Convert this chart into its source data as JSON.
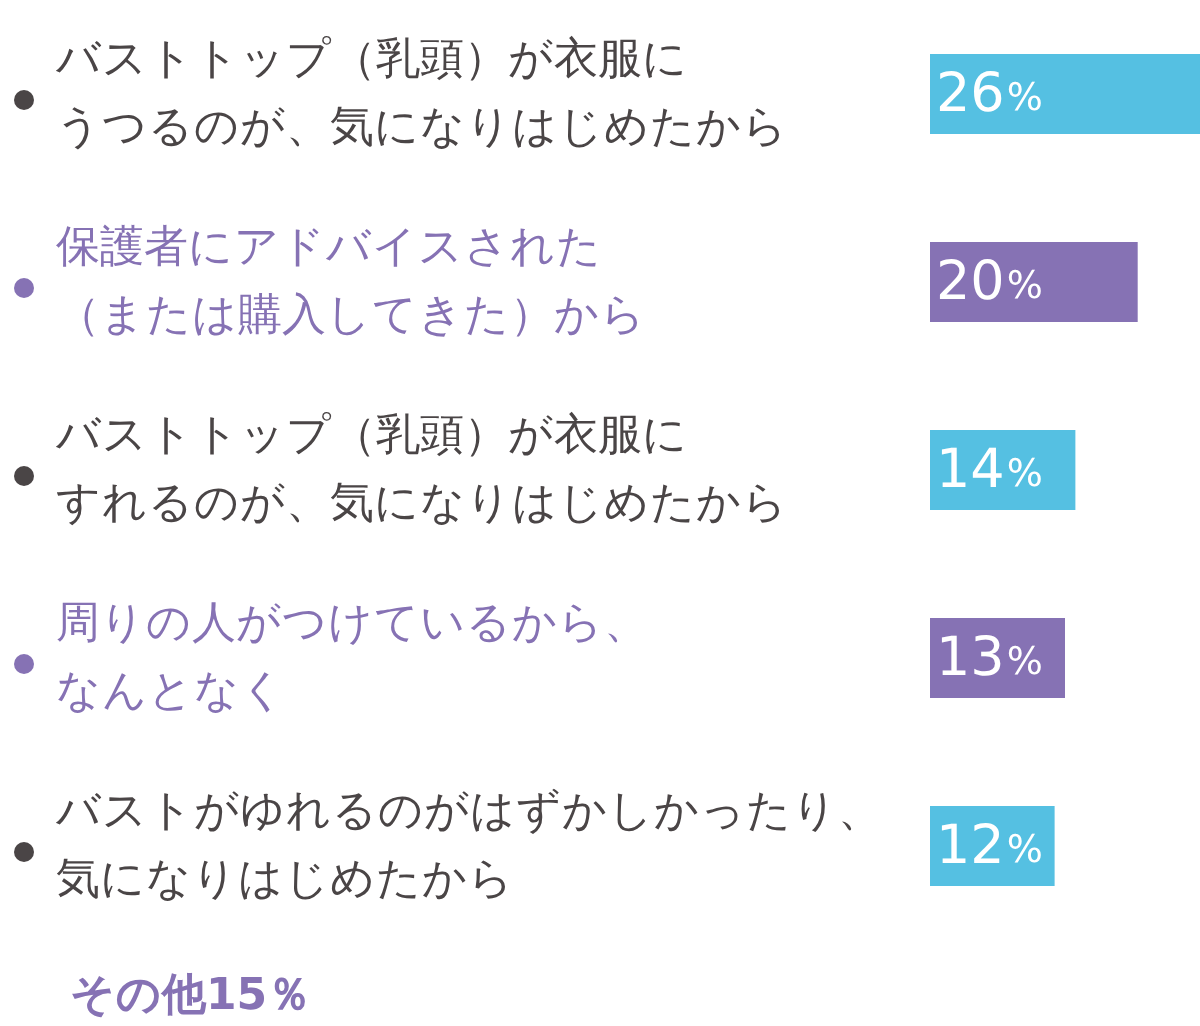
{
  "chart_data": {
    "type": "bar",
    "orientation": "horizontal",
    "categories": [
      "バストトップ（乳頭）が衣服にうつるのが、気になりはじめたから",
      "保護者にアドバイスされた（または購入してきた）から",
      "バストトップ（乳頭）が衣服にすれるのが、気になりはじめたから",
      "周りの人がつけているから、なんとなく",
      "バストがゆれるのがはずかしかったり、気になりはじめたから"
    ],
    "values": [
      26,
      20,
      14,
      13,
      12
    ],
    "colors": [
      "#55c0e2",
      "#8672b4",
      "#55c0e2",
      "#8672b4",
      "#55c0e2"
    ],
    "value_labels": [
      "26%",
      "20%",
      "14%",
      "13%",
      "12%"
    ],
    "annotations": [
      "その他15％"
    ]
  }
}
